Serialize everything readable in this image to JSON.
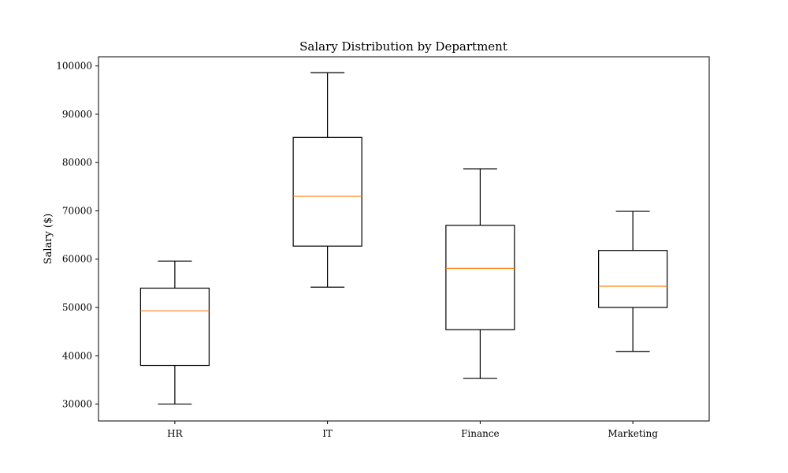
{
  "chart_data": {
    "type": "boxplot",
    "title": "Salary Distribution by Department",
    "xlabel": "",
    "ylabel": "Salary ($)",
    "categories": [
      "HR",
      "IT",
      "Finance",
      "Marketing"
    ],
    "boxes": [
      {
        "category": "HR",
        "whisker_low": 30000,
        "q1": 38000,
        "median": 49300,
        "q3": 54000,
        "whisker_high": 59600
      },
      {
        "category": "IT",
        "whisker_low": 54200,
        "q1": 62700,
        "median": 73000,
        "q3": 85200,
        "whisker_high": 98600
      },
      {
        "category": "Finance",
        "whisker_low": 35300,
        "q1": 45400,
        "median": 58100,
        "q3": 67000,
        "whisker_high": 78700
      },
      {
        "category": "Marketing",
        "whisker_low": 40900,
        "q1": 50000,
        "median": 54400,
        "q3": 61800,
        "whisker_high": 69900
      }
    ],
    "y_ticks": [
      30000,
      40000,
      50000,
      60000,
      70000,
      80000,
      90000,
      100000
    ],
    "ylim": [
      26500,
      101900
    ],
    "grid": false,
    "colors": {
      "box": "#000000",
      "median": "#ff7f0e"
    }
  }
}
